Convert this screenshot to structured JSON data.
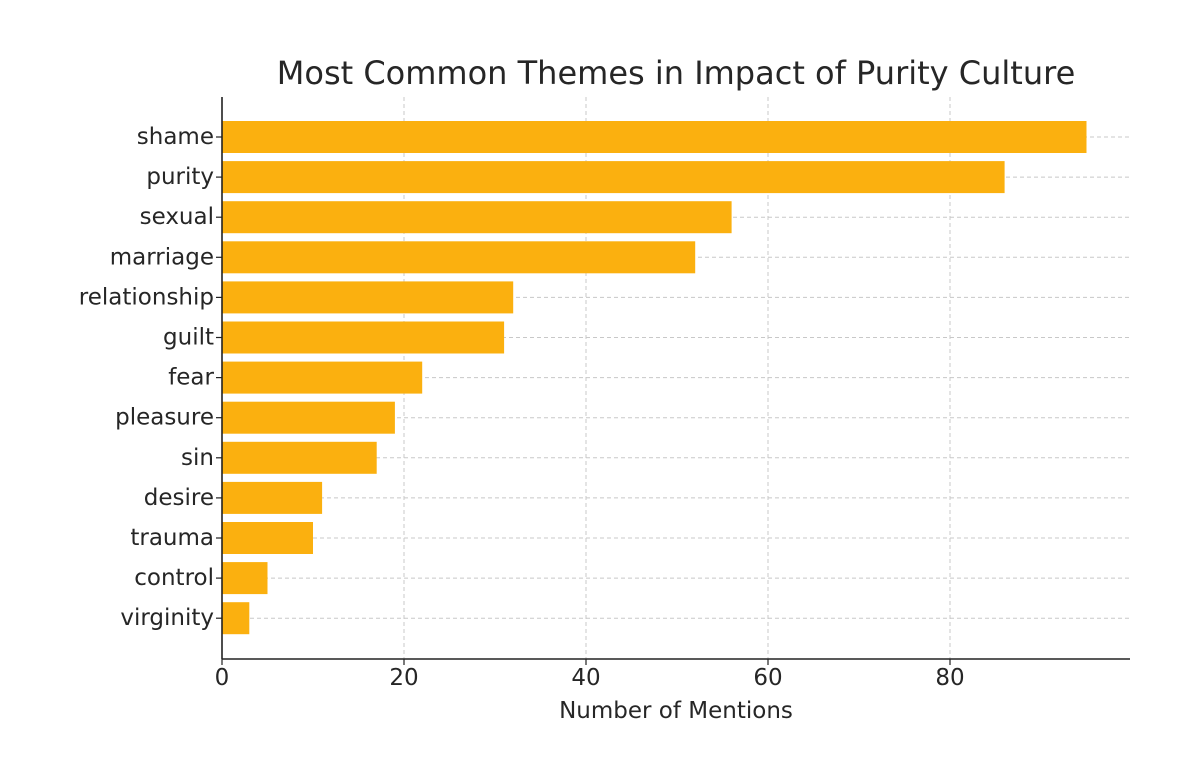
{
  "chart_data": {
    "type": "bar",
    "orientation": "horizontal",
    "title": "Most Common Themes in Impact of Purity Culture",
    "xlabel": "Number of Mentions",
    "ylabel": "",
    "categories": [
      "shame",
      "purity",
      "sexual",
      "marriage",
      "relationship",
      "guilt",
      "fear",
      "pleasure",
      "sin",
      "desire",
      "trauma",
      "control",
      "virginity"
    ],
    "values": [
      95,
      86,
      56,
      52,
      32,
      31,
      22,
      19,
      17,
      11,
      10,
      5,
      3
    ],
    "xlim": [
      0,
      100
    ],
    "xticks": [
      0,
      20,
      40,
      60,
      80
    ],
    "grid": true,
    "bar_color": "#fbb00f"
  }
}
